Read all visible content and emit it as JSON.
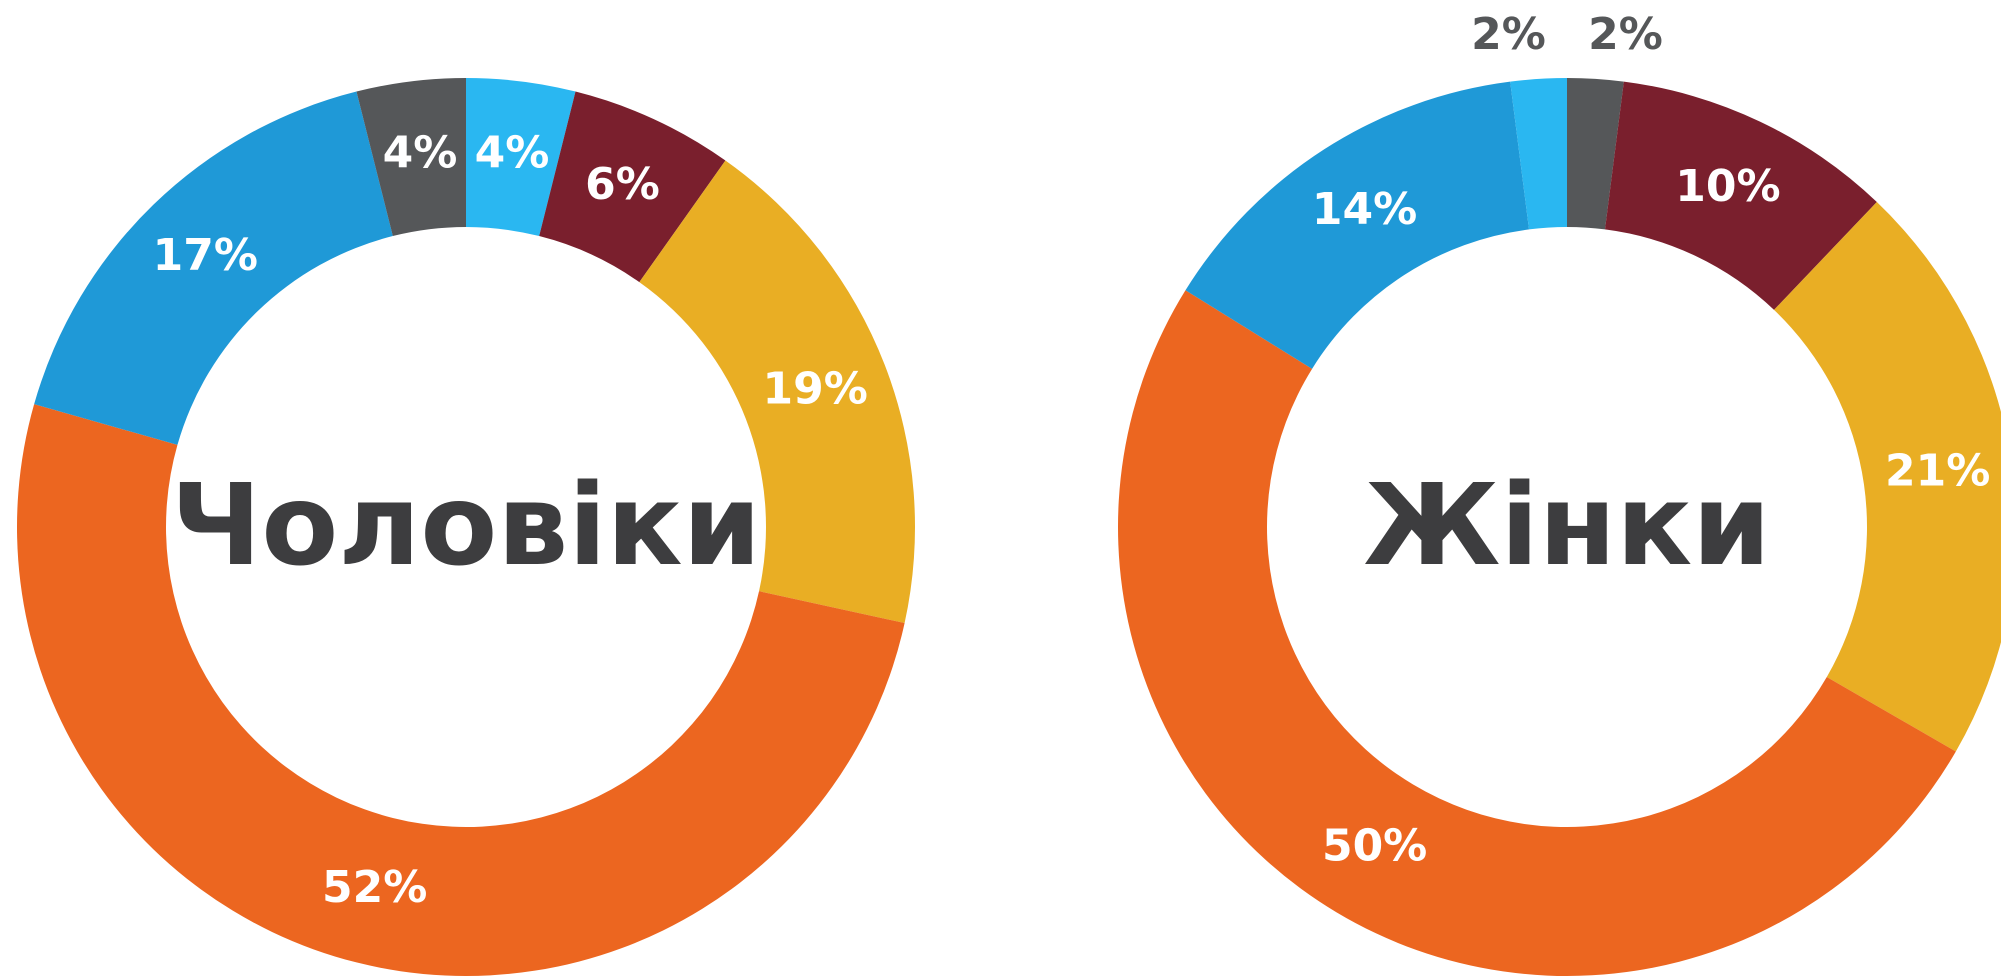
{
  "chart_data": [
    {
      "type": "donut",
      "title": "Чоловіки",
      "values": [
        4,
        6,
        19,
        52,
        17,
        4
      ],
      "value_labels": [
        "4%",
        "6%",
        "19%",
        "52%",
        "17%",
        "4%"
      ],
      "colors": [
        "#2ab7f1",
        "#7a1f2d",
        "#e9ae24",
        "#ec6620",
        "#1f99d7",
        "#555759"
      ]
    },
    {
      "type": "donut",
      "title": "Жінки",
      "values": [
        2,
        10,
        21,
        50,
        14,
        2
      ],
      "value_labels": [
        "2%",
        "10%",
        "21%",
        "50%",
        "14%",
        "2%"
      ],
      "colors": [
        "#555759",
        "#7a1f2d",
        "#e9ae24",
        "#ec6620",
        "#1f99d7",
        "#2ab7f1"
      ]
    }
  ]
}
